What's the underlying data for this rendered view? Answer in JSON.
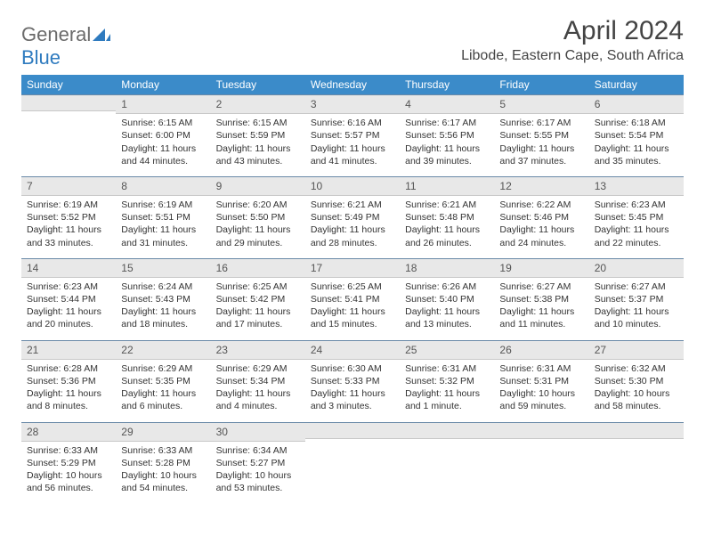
{
  "brand": {
    "part1": "General",
    "part2": "Blue"
  },
  "title": "April 2024",
  "location": "Libode, Eastern Cape, South Africa",
  "colors": {
    "header_bg": "#3b8bc9",
    "header_text": "#ffffff",
    "daynum_bg": "#e8e8e8",
    "daynum_border_top": "#6a8aa8",
    "logo_gray": "#6b6b6b",
    "logo_blue": "#2f7bbf",
    "text": "#333333",
    "background": "#ffffff"
  },
  "typography": {
    "title_fontsize": 30,
    "location_fontsize": 16,
    "header_fontsize": 12,
    "cell_fontsize": 10.5
  },
  "weekdays": [
    "Sunday",
    "Monday",
    "Tuesday",
    "Wednesday",
    "Thursday",
    "Friday",
    "Saturday"
  ],
  "weeks": [
    [
      {
        "n": "",
        "sunrise": "",
        "sunset": "",
        "daylight": ""
      },
      {
        "n": "1",
        "sunrise": "Sunrise: 6:15 AM",
        "sunset": "Sunset: 6:00 PM",
        "daylight": "Daylight: 11 hours and 44 minutes."
      },
      {
        "n": "2",
        "sunrise": "Sunrise: 6:15 AM",
        "sunset": "Sunset: 5:59 PM",
        "daylight": "Daylight: 11 hours and 43 minutes."
      },
      {
        "n": "3",
        "sunrise": "Sunrise: 6:16 AM",
        "sunset": "Sunset: 5:57 PM",
        "daylight": "Daylight: 11 hours and 41 minutes."
      },
      {
        "n": "4",
        "sunrise": "Sunrise: 6:17 AM",
        "sunset": "Sunset: 5:56 PM",
        "daylight": "Daylight: 11 hours and 39 minutes."
      },
      {
        "n": "5",
        "sunrise": "Sunrise: 6:17 AM",
        "sunset": "Sunset: 5:55 PM",
        "daylight": "Daylight: 11 hours and 37 minutes."
      },
      {
        "n": "6",
        "sunrise": "Sunrise: 6:18 AM",
        "sunset": "Sunset: 5:54 PM",
        "daylight": "Daylight: 11 hours and 35 minutes."
      }
    ],
    [
      {
        "n": "7",
        "sunrise": "Sunrise: 6:19 AM",
        "sunset": "Sunset: 5:52 PM",
        "daylight": "Daylight: 11 hours and 33 minutes."
      },
      {
        "n": "8",
        "sunrise": "Sunrise: 6:19 AM",
        "sunset": "Sunset: 5:51 PM",
        "daylight": "Daylight: 11 hours and 31 minutes."
      },
      {
        "n": "9",
        "sunrise": "Sunrise: 6:20 AM",
        "sunset": "Sunset: 5:50 PM",
        "daylight": "Daylight: 11 hours and 29 minutes."
      },
      {
        "n": "10",
        "sunrise": "Sunrise: 6:21 AM",
        "sunset": "Sunset: 5:49 PM",
        "daylight": "Daylight: 11 hours and 28 minutes."
      },
      {
        "n": "11",
        "sunrise": "Sunrise: 6:21 AM",
        "sunset": "Sunset: 5:48 PM",
        "daylight": "Daylight: 11 hours and 26 minutes."
      },
      {
        "n": "12",
        "sunrise": "Sunrise: 6:22 AM",
        "sunset": "Sunset: 5:46 PM",
        "daylight": "Daylight: 11 hours and 24 minutes."
      },
      {
        "n": "13",
        "sunrise": "Sunrise: 6:23 AM",
        "sunset": "Sunset: 5:45 PM",
        "daylight": "Daylight: 11 hours and 22 minutes."
      }
    ],
    [
      {
        "n": "14",
        "sunrise": "Sunrise: 6:23 AM",
        "sunset": "Sunset: 5:44 PM",
        "daylight": "Daylight: 11 hours and 20 minutes."
      },
      {
        "n": "15",
        "sunrise": "Sunrise: 6:24 AM",
        "sunset": "Sunset: 5:43 PM",
        "daylight": "Daylight: 11 hours and 18 minutes."
      },
      {
        "n": "16",
        "sunrise": "Sunrise: 6:25 AM",
        "sunset": "Sunset: 5:42 PM",
        "daylight": "Daylight: 11 hours and 17 minutes."
      },
      {
        "n": "17",
        "sunrise": "Sunrise: 6:25 AM",
        "sunset": "Sunset: 5:41 PM",
        "daylight": "Daylight: 11 hours and 15 minutes."
      },
      {
        "n": "18",
        "sunrise": "Sunrise: 6:26 AM",
        "sunset": "Sunset: 5:40 PM",
        "daylight": "Daylight: 11 hours and 13 minutes."
      },
      {
        "n": "19",
        "sunrise": "Sunrise: 6:27 AM",
        "sunset": "Sunset: 5:38 PM",
        "daylight": "Daylight: 11 hours and 11 minutes."
      },
      {
        "n": "20",
        "sunrise": "Sunrise: 6:27 AM",
        "sunset": "Sunset: 5:37 PM",
        "daylight": "Daylight: 11 hours and 10 minutes."
      }
    ],
    [
      {
        "n": "21",
        "sunrise": "Sunrise: 6:28 AM",
        "sunset": "Sunset: 5:36 PM",
        "daylight": "Daylight: 11 hours and 8 minutes."
      },
      {
        "n": "22",
        "sunrise": "Sunrise: 6:29 AM",
        "sunset": "Sunset: 5:35 PM",
        "daylight": "Daylight: 11 hours and 6 minutes."
      },
      {
        "n": "23",
        "sunrise": "Sunrise: 6:29 AM",
        "sunset": "Sunset: 5:34 PM",
        "daylight": "Daylight: 11 hours and 4 minutes."
      },
      {
        "n": "24",
        "sunrise": "Sunrise: 6:30 AM",
        "sunset": "Sunset: 5:33 PM",
        "daylight": "Daylight: 11 hours and 3 minutes."
      },
      {
        "n": "25",
        "sunrise": "Sunrise: 6:31 AM",
        "sunset": "Sunset: 5:32 PM",
        "daylight": "Daylight: 11 hours and 1 minute."
      },
      {
        "n": "26",
        "sunrise": "Sunrise: 6:31 AM",
        "sunset": "Sunset: 5:31 PM",
        "daylight": "Daylight: 10 hours and 59 minutes."
      },
      {
        "n": "27",
        "sunrise": "Sunrise: 6:32 AM",
        "sunset": "Sunset: 5:30 PM",
        "daylight": "Daylight: 10 hours and 58 minutes."
      }
    ],
    [
      {
        "n": "28",
        "sunrise": "Sunrise: 6:33 AM",
        "sunset": "Sunset: 5:29 PM",
        "daylight": "Daylight: 10 hours and 56 minutes."
      },
      {
        "n": "29",
        "sunrise": "Sunrise: 6:33 AM",
        "sunset": "Sunset: 5:28 PM",
        "daylight": "Daylight: 10 hours and 54 minutes."
      },
      {
        "n": "30",
        "sunrise": "Sunrise: 6:34 AM",
        "sunset": "Sunset: 5:27 PM",
        "daylight": "Daylight: 10 hours and 53 minutes."
      },
      {
        "n": "",
        "sunrise": "",
        "sunset": "",
        "daylight": ""
      },
      {
        "n": "",
        "sunrise": "",
        "sunset": "",
        "daylight": ""
      },
      {
        "n": "",
        "sunrise": "",
        "sunset": "",
        "daylight": ""
      },
      {
        "n": "",
        "sunrise": "",
        "sunset": "",
        "daylight": ""
      }
    ]
  ]
}
